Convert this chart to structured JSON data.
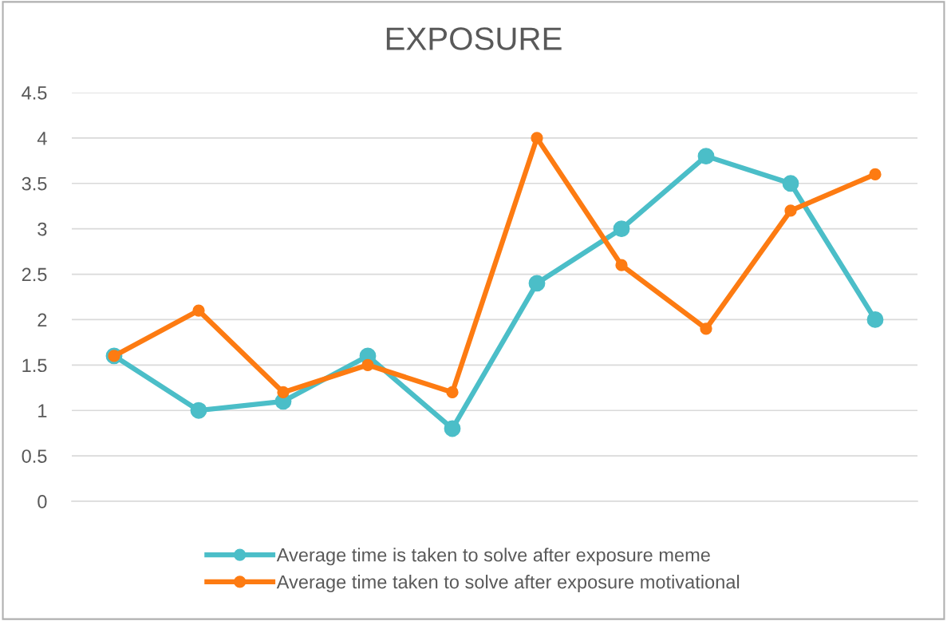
{
  "chart_data": {
    "type": "line",
    "title": "EXPOSURE",
    "categories": [
      null,
      null,
      null,
      null,
      null,
      null,
      null,
      null,
      null,
      null
    ],
    "series": [
      {
        "name": "Average time is taken to solve after exposure meme",
        "color": "#4bbec8",
        "values": [
          1.6,
          1.0,
          1.1,
          1.6,
          0.8,
          2.4,
          3.0,
          3.8,
          3.5,
          2.0
        ]
      },
      {
        "name": "Average time taken to solve after exposure motivational",
        "color": "#fd7b12",
        "values": [
          1.6,
          2.1,
          1.2,
          1.5,
          1.2,
          4.0,
          2.6,
          1.9,
          3.2,
          3.6
        ]
      }
    ],
    "ylim": [
      0,
      4.5
    ],
    "yticks": [
      0,
      0.5,
      1,
      1.5,
      2,
      2.5,
      3,
      3.5,
      4,
      4.5
    ],
    "grid": "y",
    "legend": "bottom",
    "marker": "circle",
    "line_style": "solid",
    "tick_labels": "y"
  }
}
